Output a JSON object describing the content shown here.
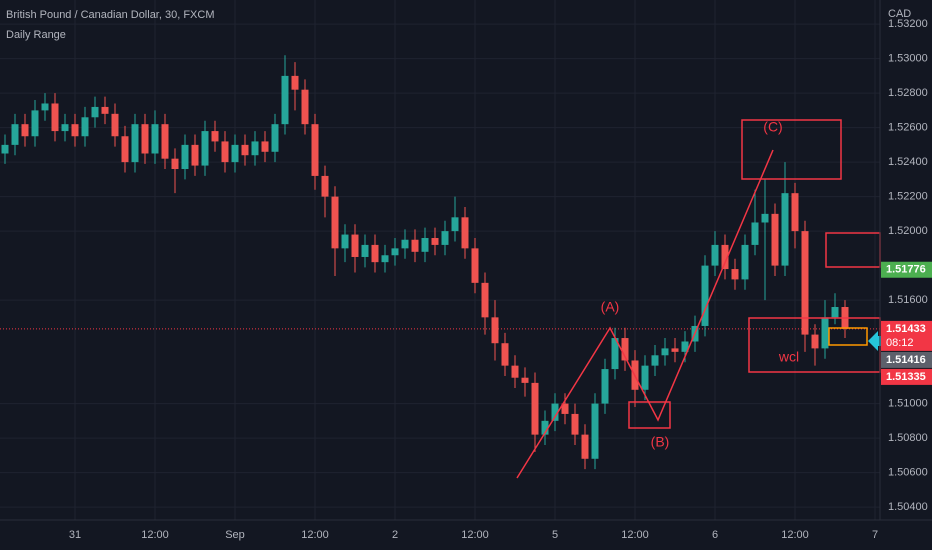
{
  "chart_data": {
    "type": "candlestick",
    "title": "British Pound / Canadian Dollar, 30, FXCM",
    "subtitle": "Daily Range",
    "y_axis_label": "CAD",
    "ylim": [
      1.50325,
      1.5334
    ],
    "xlim": [
      -0.5,
      87.5
    ],
    "yticks": [
      {
        "value": 1.532,
        "label": "1.53200"
      },
      {
        "value": 1.53,
        "label": "1.53000"
      },
      {
        "value": 1.528,
        "label": "1.52800"
      },
      {
        "value": 1.526,
        "label": "1.52600"
      },
      {
        "value": 1.524,
        "label": "1.52400"
      },
      {
        "value": 1.522,
        "label": "1.52200"
      },
      {
        "value": 1.52,
        "label": "1.52000"
      },
      {
        "value": 1.516,
        "label": "1.51600"
      },
      {
        "value": 1.51,
        "label": "1.51000"
      },
      {
        "value": 1.508,
        "label": "1.50800"
      },
      {
        "value": 1.506,
        "label": "1.50600"
      },
      {
        "value": 1.504,
        "label": "1.50400"
      }
    ],
    "xticks": [
      {
        "value": 7,
        "label": "31"
      },
      {
        "value": 15,
        "label": "12:00"
      },
      {
        "value": 23,
        "label": "Sep"
      },
      {
        "value": 31,
        "label": "12:00"
      },
      {
        "value": 39,
        "label": "2"
      },
      {
        "value": 47,
        "label": "12:00"
      },
      {
        "value": 55,
        "label": "5"
      },
      {
        "value": 63,
        "label": "12:00"
      },
      {
        "value": 71,
        "label": "6"
      },
      {
        "value": 79,
        "label": "12:00"
      },
      {
        "value": 87,
        "label": "7"
      }
    ],
    "up_color": "#26a69a",
    "down_color": "#ef5350",
    "grid": true,
    "open": [
      1.5245,
      1.525,
      1.5262,
      1.5255,
      1.527,
      1.5274,
      1.5258,
      1.5262,
      1.5255,
      1.5266,
      1.5272,
      1.5268,
      1.5255,
      1.524,
      1.5262,
      1.5245,
      1.5262,
      1.5242,
      1.5236,
      1.525,
      1.5238,
      1.5258,
      1.5252,
      1.524,
      1.525,
      1.5244,
      1.5252,
      1.5246,
      1.5262,
      1.529,
      1.5282,
      1.5262,
      1.5232,
      1.522,
      1.519,
      1.5198,
      1.5185,
      1.5192,
      1.5182,
      1.5186,
      1.519,
      1.5195,
      1.5188,
      1.5196,
      1.5192,
      1.52,
      1.5208,
      1.519,
      1.517,
      1.515,
      1.5135,
      1.5122,
      1.5115,
      1.5112,
      1.5082,
      1.509,
      1.51,
      1.5094,
      1.5082,
      1.5068,
      1.51,
      1.512,
      1.5138,
      1.5125,
      1.5108,
      1.5122,
      1.5128,
      1.5132,
      1.513,
      1.5136,
      1.5145,
      1.518,
      1.5192,
      1.5178,
      1.5172,
      1.5192,
      1.5205,
      1.521,
      1.518,
      1.5222,
      1.52,
      1.514,
      1.5132,
      1.515,
      1.5156
    ],
    "high": [
      1.5256,
      1.5268,
      1.5268,
      1.5276,
      1.528,
      1.528,
      1.5268,
      1.5268,
      1.5272,
      1.5278,
      1.5278,
      1.5274,
      1.5261,
      1.5268,
      1.5268,
      1.527,
      1.5268,
      1.5248,
      1.5256,
      1.5256,
      1.5264,
      1.5264,
      1.5258,
      1.5256,
      1.5256,
      1.5258,
      1.5258,
      1.5268,
      1.5302,
      1.5298,
      1.5288,
      1.5268,
      1.5238,
      1.5226,
      1.5204,
      1.5204,
      1.5198,
      1.5198,
      1.5192,
      1.5196,
      1.5201,
      1.5201,
      1.5202,
      1.5202,
      1.5206,
      1.522,
      1.5214,
      1.5196,
      1.5176,
      1.516,
      1.5141,
      1.5128,
      1.5121,
      1.5118,
      1.5096,
      1.5106,
      1.5106,
      1.51,
      1.5088,
      1.5106,
      1.5126,
      1.5144,
      1.5144,
      1.5131,
      1.5128,
      1.5134,
      1.5138,
      1.5138,
      1.5142,
      1.5151,
      1.5186,
      1.52,
      1.5198,
      1.5184,
      1.5198,
      1.5224,
      1.523,
      1.5216,
      1.524,
      1.5228,
      1.5206,
      1.5146,
      1.516,
      1.5164,
      1.516
    ],
    "low": [
      1.5239,
      1.5244,
      1.5249,
      1.5249,
      1.5264,
      1.5252,
      1.5252,
      1.5249,
      1.5249,
      1.526,
      1.5262,
      1.5249,
      1.5234,
      1.5234,
      1.5239,
      1.5239,
      1.5236,
      1.5222,
      1.523,
      1.5232,
      1.5232,
      1.5246,
      1.5234,
      1.5234,
      1.5238,
      1.5238,
      1.524,
      1.524,
      1.5256,
      1.527,
      1.5256,
      1.5224,
      1.5208,
      1.5174,
      1.5182,
      1.5176,
      1.5179,
      1.5176,
      1.5176,
      1.518,
      1.5184,
      1.5182,
      1.5182,
      1.5186,
      1.5186,
      1.5194,
      1.5184,
      1.5164,
      1.514,
      1.5125,
      1.5116,
      1.5109,
      1.5104,
      1.5072,
      1.5076,
      1.5084,
      1.5088,
      1.5076,
      1.5062,
      1.5062,
      1.5094,
      1.5114,
      1.5119,
      1.5098,
      1.5102,
      1.5116,
      1.5122,
      1.5124,
      1.5124,
      1.513,
      1.5139,
      1.5174,
      1.5172,
      1.5166,
      1.5166,
      1.5186,
      1.516,
      1.5174,
      1.5174,
      1.519,
      1.513,
      1.5122,
      1.5126,
      1.5146,
      1.5138
    ],
    "close": [
      1.525,
      1.5262,
      1.5255,
      1.527,
      1.5274,
      1.5258,
      1.5262,
      1.5255,
      1.5266,
      1.5272,
      1.5268,
      1.5255,
      1.524,
      1.5262,
      1.5245,
      1.5262,
      1.5242,
      1.5236,
      1.525,
      1.5238,
      1.5258,
      1.5252,
      1.524,
      1.525,
      1.5244,
      1.5252,
      1.5246,
      1.5262,
      1.529,
      1.5282,
      1.5262,
      1.5232,
      1.522,
      1.519,
      1.5198,
      1.5185,
      1.5192,
      1.5182,
      1.5186,
      1.519,
      1.5195,
      1.5188,
      1.5196,
      1.5192,
      1.52,
      1.5208,
      1.519,
      1.517,
      1.515,
      1.5135,
      1.5122,
      1.5115,
      1.5112,
      1.5082,
      1.509,
      1.51,
      1.5094,
      1.5082,
      1.5068,
      1.51,
      1.512,
      1.5138,
      1.5125,
      1.5108,
      1.5122,
      1.5128,
      1.5132,
      1.513,
      1.5136,
      1.5145,
      1.518,
      1.5192,
      1.5178,
      1.5172,
      1.5192,
      1.5205,
      1.521,
      1.518,
      1.5222,
      1.52,
      1.514,
      1.5132,
      1.515,
      1.5156,
      1.51433
    ],
    "price_labels": [
      {
        "value": 1.51776,
        "label": "1.51776",
        "color": "#4caf50"
      },
      {
        "value": 1.51433,
        "label": "1.51433",
        "color": "#f23645",
        "countdown": "08:12"
      },
      {
        "value": 1.51416,
        "label": "1.51416",
        "color": "#5d606b"
      },
      {
        "value": 1.51335,
        "label": "1.51335",
        "color": "#f23645"
      }
    ],
    "annotations": [
      "(A)",
      "(B)",
      "(C)",
      "wcl"
    ]
  }
}
